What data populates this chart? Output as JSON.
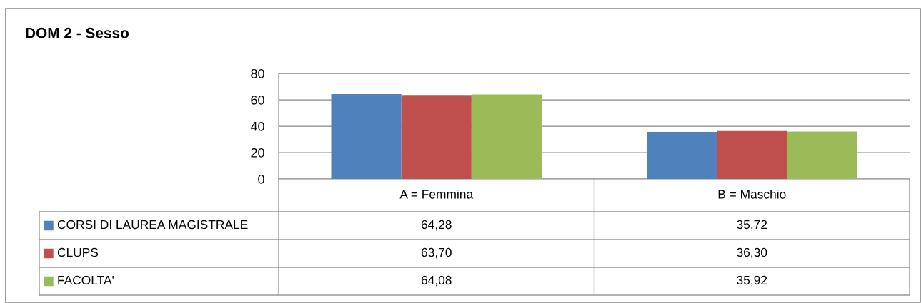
{
  "chart_data": {
    "type": "bar",
    "title": "DOM 2 - Sesso",
    "categories": [
      "A = Femmina",
      "B = Maschio"
    ],
    "series": [
      {
        "name": "CORSI DI LAUREA MAGISTRALE",
        "color": "#4f81bd",
        "values": [
          64.28,
          35.72
        ],
        "value_labels": [
          "64,28",
          "35,72"
        ]
      },
      {
        "name": "CLUPS",
        "color": "#c0504d",
        "values": [
          63.7,
          36.3
        ],
        "value_labels": [
          "63,70",
          "36,30"
        ]
      },
      {
        "name": "FACOLTA'",
        "color": "#9bbb59",
        "values": [
          64.08,
          35.92
        ],
        "value_labels": [
          "64,08",
          "35,92"
        ]
      }
    ],
    "ylim": [
      0,
      80
    ],
    "yticks": [
      0,
      20,
      40,
      60,
      80
    ],
    "grid": "y",
    "legend": "bottom left"
  }
}
